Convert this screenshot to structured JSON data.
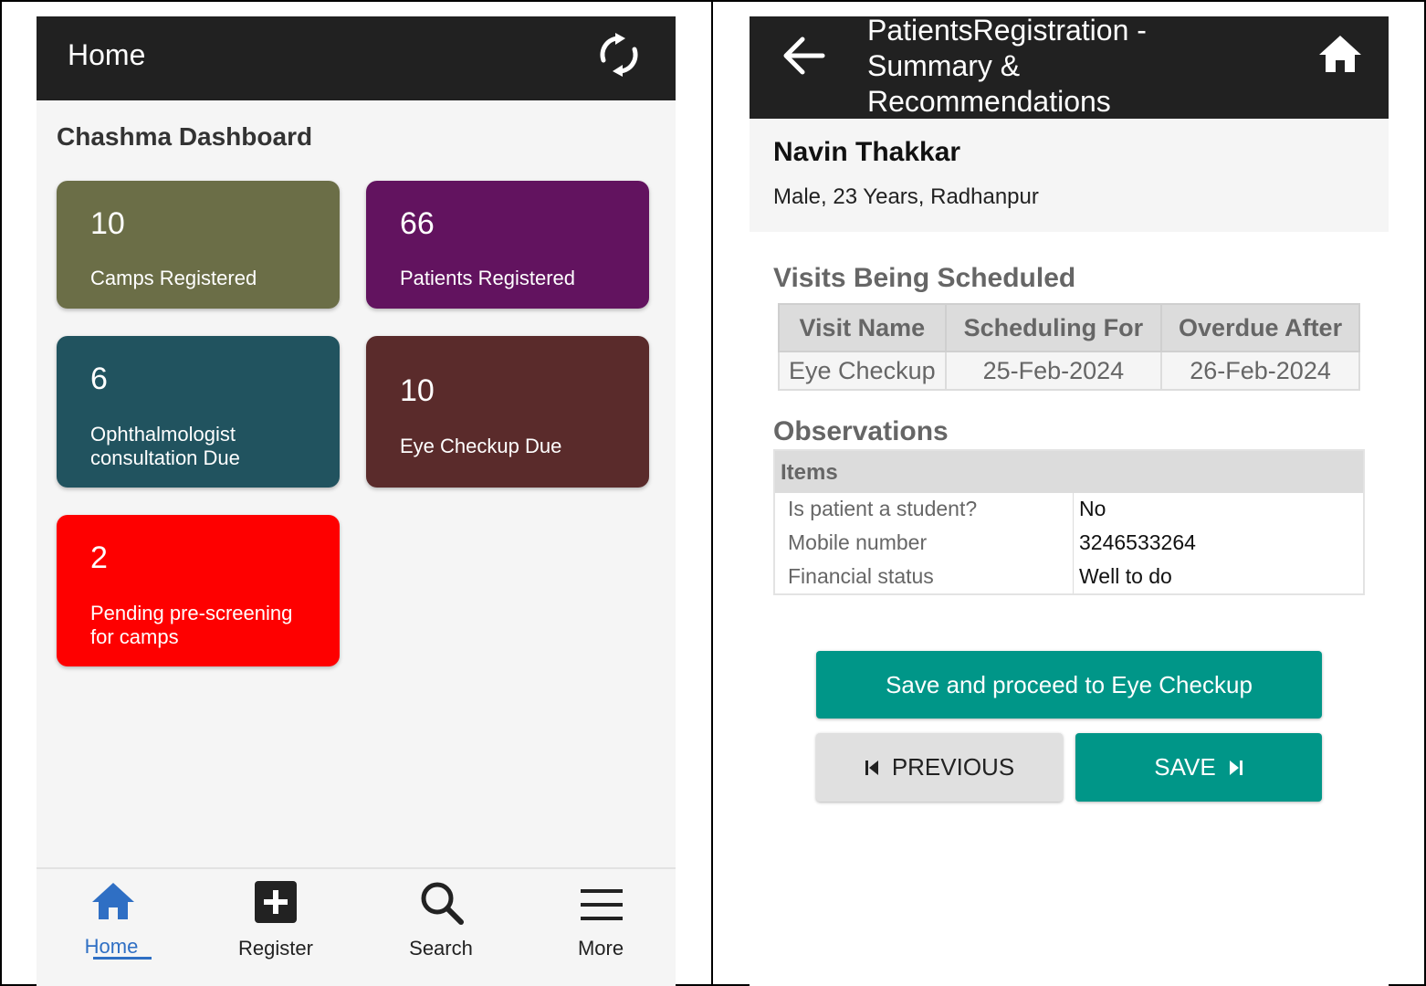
{
  "left_screen": {
    "app_bar": {
      "title": "Home",
      "sync_icon": "sync-icon"
    },
    "dashboard_title": "Chashma Dashboard",
    "tiles": [
      {
        "count": "10",
        "label": "Camps Registered",
        "color": "#6b6e47"
      },
      {
        "count": "66",
        "label": "Patients Registered",
        "color": "#62135f"
      },
      {
        "count": "6",
        "label": "Ophthalmologist consultation Due",
        "color": "#21535f"
      },
      {
        "count": "10",
        "label": "Eye Checkup Due",
        "color": "#5a2b2b"
      },
      {
        "count": "2",
        "label": "Pending pre-screening for camps",
        "color": "#fe0000"
      }
    ],
    "bottom_nav": [
      {
        "label": "Home",
        "icon": "home-icon",
        "active": true
      },
      {
        "label": "Register",
        "icon": "add-box-icon",
        "active": false
      },
      {
        "label": "Search",
        "icon": "search-icon",
        "active": false
      },
      {
        "label": "More",
        "icon": "menu-icon",
        "active": false
      }
    ],
    "colors": {
      "app_bar": "#212121",
      "active_nav": "#2f6fc4"
    }
  },
  "right_screen": {
    "app_bar": {
      "title": "PatientsRegistration - Summary & Recommendations",
      "back_icon": "arrow-back-icon",
      "home_icon": "home-icon"
    },
    "patient": {
      "name": "Navin Thakkar",
      "details": "Male, 23 Years, Radhanpur"
    },
    "visits_section": {
      "title": "Visits Being Scheduled",
      "headers": [
        "Visit Name",
        "Scheduling For",
        "Overdue After"
      ],
      "rows": [
        [
          "Eye Checkup",
          "25-Feb-2024",
          "26-Feb-2024"
        ]
      ]
    },
    "observations_section": {
      "title": "Observations",
      "header": "Items",
      "rows": [
        {
          "key": "Is patient a student?",
          "value": "No"
        },
        {
          "key": "Mobile number",
          "value": "3246533264"
        },
        {
          "key": "Financial status",
          "value": "Well to do"
        }
      ]
    },
    "buttons": {
      "primary": "Save and proceed to Eye Checkup",
      "previous": "PREVIOUS",
      "save": "SAVE"
    },
    "colors": {
      "teal": "#009688",
      "grey_button": "#e0e0e0"
    }
  }
}
